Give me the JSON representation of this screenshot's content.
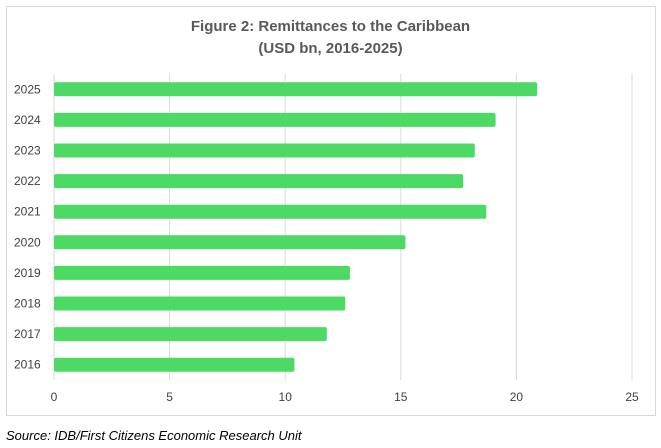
{
  "title_line1": "Figure 2: Remittances to the Caribbean",
  "title_line2": "(USD bn, 2016-2025)",
  "source": "Source: IDB/First Citizens Economic Research Unit",
  "chart_data": {
    "type": "bar",
    "orientation": "horizontal",
    "title": "Figure 2: Remittances to the Caribbean (USD bn, 2016-2025)",
    "categories": [
      "2025",
      "2024",
      "2023",
      "2022",
      "2021",
      "2020",
      "2019",
      "2018",
      "2017",
      "2016"
    ],
    "values": [
      20.9,
      19.1,
      18.2,
      17.7,
      18.7,
      15.2,
      12.8,
      12.6,
      11.8,
      10.4
    ],
    "xlim": [
      0,
      25
    ],
    "xticks": [
      "0",
      "5",
      "10",
      "15",
      "20",
      "25"
    ],
    "bar_color": "#4cd964",
    "grid": true,
    "legend": "none"
  }
}
